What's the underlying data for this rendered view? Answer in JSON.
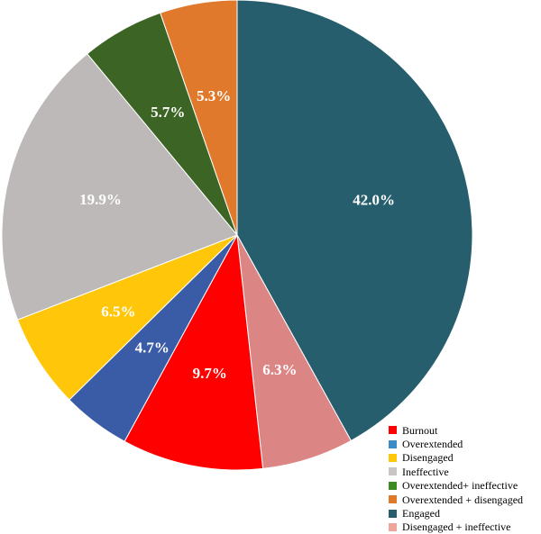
{
  "chart_data": {
    "type": "pie",
    "title": "",
    "start_angle_deg": 0,
    "direction": "clockwise",
    "legend_position": "bottom-right",
    "slices": [
      {
        "name": "Engaged",
        "value": 42.0,
        "label": "42.0%",
        "color": "#265E6E"
      },
      {
        "name": "Disengaged + ineffective",
        "value": 6.3,
        "label": "6.3%",
        "color": "#DB8585"
      },
      {
        "name": "Burnout",
        "value": 9.7,
        "label": "9.7%",
        "color": "#FF0000"
      },
      {
        "name": "Overextended",
        "value": 4.7,
        "label": "4.7%",
        "color": "#3A5BA5"
      },
      {
        "name": "Disengaged",
        "value": 6.5,
        "label": "6.5%",
        "color": "#FFC60A"
      },
      {
        "name": "Ineffective",
        "value": 19.9,
        "label": "19.9%",
        "color": "#BDB9B8"
      },
      {
        "name": "Overextended+ ineffective",
        "value": 5.7,
        "label": "5.7%",
        "color": "#3C6525"
      },
      {
        "name": "Overextended + disengaged",
        "value": 5.3,
        "label": "5.3%",
        "color": "#E0792B"
      }
    ],
    "legend": [
      {
        "label": "Burnout",
        "color": "#FF0000"
      },
      {
        "label": "Overextended",
        "color": "#3A8BC6"
      },
      {
        "label": "Disengaged",
        "color": "#FFC60A"
      },
      {
        "label": "Ineffective",
        "color": "#C8C5C4"
      },
      {
        "label": "Overextended+ ineffective",
        "color": "#3E8A22"
      },
      {
        "label": "Overextended + disengaged",
        "color": "#E0792B"
      },
      {
        "label": "Engaged",
        "color": "#265E6E"
      },
      {
        "label": "Disengaged + ineffective",
        "color": "#F0A59B"
      }
    ]
  }
}
